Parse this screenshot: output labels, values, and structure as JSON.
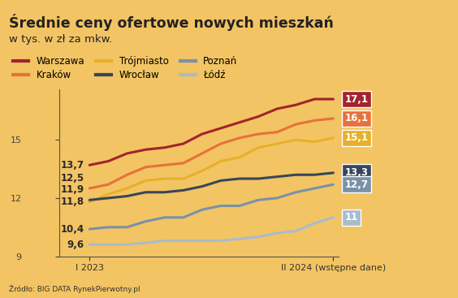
{
  "chart_data": {
    "type": "line",
    "title": "Średnie ceny ofertowe nowych mieszkań",
    "subtitle": "w tys. w zł za mkw.",
    "source": "Źródło: BIG DATA RynekPierwotny.pl",
    "categories": [
      "I 2023",
      null,
      null,
      null,
      null,
      null,
      null,
      null,
      null,
      null,
      null,
      null,
      null,
      "II 2024 (wstępne dane)"
    ],
    "series": [
      {
        "name": "Warszawa",
        "color": "#a3232e",
        "values": [
          13.7,
          13.9,
          14.3,
          14.5,
          14.6,
          14.8,
          15.3,
          15.6,
          15.9,
          16.2,
          16.6,
          16.8,
          17.1,
          17.1
        ],
        "value_labels": [
          "13,7",
          null,
          null,
          null,
          null,
          null,
          null,
          null,
          null,
          null,
          null,
          null,
          null,
          "17,1"
        ]
      },
      {
        "name": "Kraków",
        "color": "#e8713a",
        "values": [
          12.5,
          12.7,
          13.2,
          13.6,
          13.7,
          13.8,
          14.3,
          14.8,
          15.1,
          15.3,
          15.4,
          15.8,
          16.0,
          16.1
        ],
        "value_labels": [
          "12,5",
          null,
          null,
          null,
          null,
          null,
          null,
          null,
          null,
          null,
          null,
          null,
          null,
          "16,1"
        ]
      },
      {
        "name": "Trójmiasto",
        "color": "#e6b02a",
        "values": [
          11.8,
          12.2,
          12.5,
          12.9,
          13.0,
          13.0,
          13.4,
          13.9,
          14.1,
          14.6,
          14.8,
          15.0,
          14.9,
          15.1
        ],
        "value_labels": [
          "11,8",
          null,
          null,
          null,
          null,
          null,
          null,
          null,
          null,
          null,
          null,
          null,
          null,
          "15,1"
        ]
      },
      {
        "name": "Wrocław",
        "color": "#37465a",
        "values": [
          11.9,
          12.0,
          12.1,
          12.3,
          12.3,
          12.4,
          12.6,
          12.9,
          13.0,
          13.0,
          13.1,
          13.2,
          13.2,
          13.3
        ],
        "value_labels": [
          "11,9",
          null,
          null,
          null,
          null,
          null,
          null,
          null,
          null,
          null,
          null,
          null,
          null,
          "13,3"
        ]
      },
      {
        "name": "Poznań",
        "color": "#7892a8",
        "values": [
          10.4,
          10.5,
          10.5,
          10.8,
          11.0,
          11.0,
          11.4,
          11.6,
          11.6,
          11.9,
          12.0,
          12.3,
          12.5,
          12.7
        ],
        "value_labels": [
          "10,4",
          null,
          null,
          null,
          null,
          null,
          null,
          null,
          null,
          null,
          null,
          null,
          null,
          "12,7"
        ]
      },
      {
        "name": "Łódź",
        "color": "#a8bccd",
        "values": [
          9.6,
          9.6,
          9.6,
          9.7,
          9.8,
          9.8,
          9.8,
          9.8,
          9.9,
          10.0,
          10.2,
          10.3,
          10.7,
          11.0
        ],
        "value_labels": [
          "9,6",
          null,
          null,
          null,
          null,
          null,
          null,
          null,
          null,
          null,
          null,
          null,
          null,
          "11"
        ]
      }
    ],
    "ylim": [
      9,
      17.6
    ],
    "yticks": [
      9,
      12,
      15
    ],
    "grid": false,
    "legend": "upper left",
    "data_labels": true
  }
}
